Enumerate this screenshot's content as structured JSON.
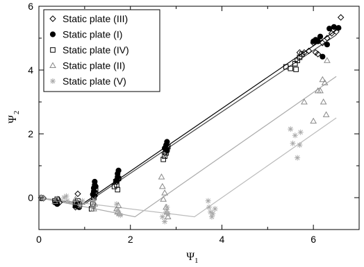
{
  "chart_data": {
    "type": "scatter",
    "title": "",
    "xlabel": {
      "main": "Ψ",
      "sub": "1"
    },
    "ylabel": {
      "main": "Ψ",
      "sub": "2"
    },
    "xlim": [
      0,
      7
    ],
    "ylim": [
      -1,
      6
    ],
    "x_ticks": [
      {
        "value": 0,
        "label": "0"
      },
      {
        "value": 2,
        "label": "2"
      },
      {
        "value": 4,
        "label": "4"
      },
      {
        "value": 6,
        "label": "6"
      }
    ],
    "y_ticks": [
      {
        "value": 0,
        "label": "0"
      },
      {
        "value": 2,
        "label": "2"
      },
      {
        "value": 4,
        "label": "4"
      },
      {
        "value": 6,
        "label": "6"
      }
    ],
    "grid": false,
    "legend_position": "top-left",
    "series": [
      {
        "name": "Static plate (III)",
        "marker": "diamond",
        "color": "#000000",
        "filled": false,
        "points": [
          [
            0.05,
            0.0
          ],
          [
            0.1,
            -0.02
          ],
          [
            0.38,
            -0.12
          ],
          [
            0.42,
            -0.05
          ],
          [
            0.45,
            -0.15
          ],
          [
            0.8,
            -0.3
          ],
          [
            0.82,
            -0.25
          ],
          [
            0.84,
            -0.15
          ],
          [
            0.86,
            -0.22
          ],
          [
            0.88,
            -0.28
          ],
          [
            0.85,
            0.12
          ],
          [
            1.2,
            0.1
          ],
          [
            1.22,
            0.05
          ],
          [
            1.24,
            0.15
          ],
          [
            1.7,
            0.5
          ],
          [
            1.72,
            0.55
          ],
          [
            1.74,
            0.6
          ],
          [
            2.75,
            1.4
          ],
          [
            2.78,
            1.5
          ],
          [
            2.8,
            1.6
          ],
          [
            5.7,
            4.55
          ],
          [
            5.8,
            4.55
          ],
          [
            5.9,
            4.6
          ],
          [
            6.0,
            4.85
          ],
          [
            6.05,
            4.55
          ],
          [
            6.1,
            4.5
          ],
          [
            6.2,
            4.85
          ],
          [
            6.3,
            5.0
          ],
          [
            6.4,
            5.15
          ],
          [
            6.5,
            5.2
          ],
          [
            6.6,
            5.65
          ]
        ]
      },
      {
        "name": "Static plate (I)",
        "marker": "circle",
        "color": "#000000",
        "filled": true,
        "points": [
          [
            0.05,
            -0.02
          ],
          [
            0.35,
            -0.15
          ],
          [
            0.4,
            -0.2
          ],
          [
            0.8,
            -0.25
          ],
          [
            0.85,
            -0.2
          ],
          [
            0.88,
            -0.3
          ],
          [
            1.18,
            0.1
          ],
          [
            1.2,
            0.2
          ],
          [
            1.2,
            0.3
          ],
          [
            1.22,
            0.4
          ],
          [
            1.22,
            0.5
          ],
          [
            1.24,
            0.35
          ],
          [
            1.7,
            0.55
          ],
          [
            1.72,
            0.65
          ],
          [
            1.72,
            0.75
          ],
          [
            1.74,
            0.85
          ],
          [
            2.75,
            1.55
          ],
          [
            2.78,
            1.65
          ],
          [
            2.8,
            1.75
          ],
          [
            2.8,
            1.48
          ],
          [
            6.0,
            4.9
          ],
          [
            6.05,
            4.95
          ],
          [
            6.1,
            4.9
          ],
          [
            6.15,
            5.05
          ],
          [
            6.2,
            4.42
          ],
          [
            6.3,
            4.8
          ],
          [
            6.35,
            5.3
          ],
          [
            6.45,
            5.35
          ],
          [
            6.55,
            5.32
          ]
        ]
      },
      {
        "name": "Static plate (IV)",
        "marker": "square",
        "color": "#000000",
        "filled": false,
        "points": [
          [
            0.05,
            0.0
          ],
          [
            0.35,
            -0.1
          ],
          [
            0.4,
            -0.05
          ],
          [
            0.8,
            -0.15
          ],
          [
            0.85,
            -0.1
          ],
          [
            0.88,
            -0.2
          ],
          [
            1.15,
            -0.35
          ],
          [
            1.18,
            -0.2
          ],
          [
            1.2,
            0.0
          ],
          [
            1.22,
            0.15
          ],
          [
            1.24,
            0.25
          ],
          [
            1.65,
            0.35
          ],
          [
            1.68,
            0.5
          ],
          [
            1.7,
            0.4
          ],
          [
            1.72,
            0.25
          ],
          [
            1.74,
            0.6
          ],
          [
            2.72,
            1.2
          ],
          [
            2.75,
            1.3
          ],
          [
            2.78,
            1.4
          ],
          [
            2.8,
            1.5
          ],
          [
            2.82,
            1.6
          ],
          [
            5.4,
            4.1
          ],
          [
            5.5,
            4.05
          ],
          [
            5.6,
            4.2
          ],
          [
            5.62,
            4.02
          ],
          [
            5.65,
            4.3
          ],
          [
            5.7,
            4.4
          ],
          [
            5.75,
            4.5
          ]
        ]
      },
      {
        "name": "Static plate (II)",
        "marker": "triangle",
        "color": "#888888",
        "filled": false,
        "points": [
          [
            0.05,
            0.0
          ],
          [
            0.35,
            -0.12
          ],
          [
            0.4,
            -0.05
          ],
          [
            0.8,
            -0.05
          ],
          [
            0.82,
            -0.15
          ],
          [
            1.18,
            -0.25
          ],
          [
            1.2,
            -0.35
          ],
          [
            1.22,
            -0.2
          ],
          [
            1.7,
            -0.35
          ],
          [
            1.72,
            -0.45
          ],
          [
            1.74,
            -0.25
          ],
          [
            1.76,
            -0.5
          ],
          [
            2.68,
            0.65
          ],
          [
            2.7,
            0.35
          ],
          [
            2.72,
            -0.05
          ],
          [
            2.75,
            0.15
          ],
          [
            2.78,
            -0.3
          ],
          [
            2.8,
            -0.45
          ],
          [
            2.82,
            -0.6
          ],
          [
            5.8,
            3.0
          ],
          [
            6.0,
            2.4
          ],
          [
            6.1,
            3.35
          ],
          [
            6.15,
            3.35
          ],
          [
            6.2,
            3.7
          ],
          [
            6.22,
            3.0
          ],
          [
            6.25,
            3.6
          ],
          [
            6.28,
            2.6
          ],
          [
            6.3,
            4.3
          ]
        ]
      },
      {
        "name": "Static plate (V)",
        "marker": "asterisk",
        "color": "#aaaaaa",
        "filled": false,
        "points": [
          [
            0.05,
            0.02
          ],
          [
            0.1,
            -0.02
          ],
          [
            0.55,
            0.0
          ],
          [
            0.6,
            0.05
          ],
          [
            0.62,
            -0.1
          ],
          [
            0.9,
            -0.25
          ],
          [
            0.95,
            -0.1
          ],
          [
            1.7,
            -0.2
          ],
          [
            1.72,
            -0.4
          ],
          [
            1.75,
            -0.5
          ],
          [
            1.78,
            -0.55
          ],
          [
            2.7,
            -0.6
          ],
          [
            2.75,
            -0.75
          ],
          [
            2.78,
            -0.45
          ],
          [
            2.8,
            -0.3
          ],
          [
            2.82,
            -0.5
          ],
          [
            3.7,
            -0.1
          ],
          [
            3.72,
            -0.3
          ],
          [
            3.75,
            -0.45
          ],
          [
            3.78,
            -0.6
          ],
          [
            3.8,
            -0.5
          ],
          [
            3.85,
            -0.35
          ],
          [
            5.5,
            2.15
          ],
          [
            5.55,
            1.7
          ],
          [
            5.6,
            1.95
          ],
          [
            5.65,
            1.25
          ],
          [
            5.7,
            1.65
          ],
          [
            5.72,
            2.05
          ]
        ]
      }
    ],
    "fit_lines": [
      {
        "color": "#000000",
        "points": [
          [
            0,
            0
          ],
          [
            0.9,
            -0.25
          ],
          [
            6.55,
            5.3
          ]
        ]
      },
      {
        "color": "#444444",
        "points": [
          [
            0,
            0
          ],
          [
            1.0,
            -0.2
          ],
          [
            6.5,
            5.1
          ]
        ]
      },
      {
        "color": "#aaaaaa",
        "points": [
          [
            0,
            0
          ],
          [
            2.1,
            -0.6
          ],
          [
            6.5,
            3.8
          ]
        ]
      },
      {
        "color": "#bbbbbb",
        "points": [
          [
            0,
            0
          ],
          [
            3.4,
            -0.6
          ],
          [
            6.5,
            2.5
          ]
        ]
      }
    ]
  }
}
